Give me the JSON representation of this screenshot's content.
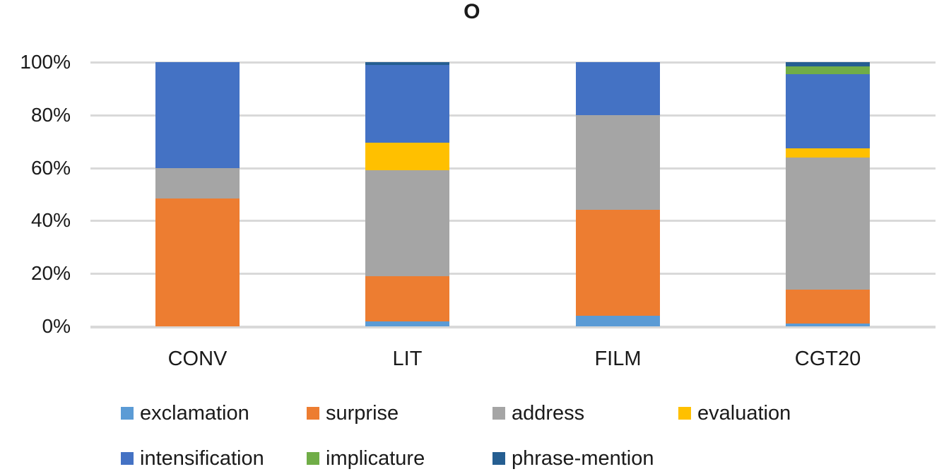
{
  "chart_data": {
    "type": "bar",
    "stacked": true,
    "percent_stacked": true,
    "title": "O",
    "categories": [
      "CONV",
      "LIT",
      "FILM",
      "CGT20"
    ],
    "series": [
      {
        "name": "exclamation",
        "color": "#5B9BD5",
        "values": [
          0,
          2,
          4,
          1
        ]
      },
      {
        "name": "surprise",
        "color": "#ED7D31",
        "values": [
          48.5,
          17,
          40,
          13
        ]
      },
      {
        "name": "address",
        "color": "#A5A5A5",
        "values": [
          11.5,
          40,
          36,
          50
        ]
      },
      {
        "name": "evaluation",
        "color": "#FFC000",
        "values": [
          0,
          10.5,
          0,
          3.5
        ]
      },
      {
        "name": "intensification",
        "color": "#4472C4",
        "values": [
          40,
          29.5,
          20,
          28
        ]
      },
      {
        "name": "implicature",
        "color": "#70AD47",
        "values": [
          0,
          0,
          0,
          3
        ]
      },
      {
        "name": "phrase-mention",
        "color": "#255E91",
        "values": [
          0,
          1,
          0,
          1.5
        ]
      }
    ],
    "y_axis": {
      "min": 0,
      "max": 100,
      "step": 20,
      "tick_labels": [
        "0%",
        "20%",
        "40%",
        "60%",
        "80%",
        "100%"
      ]
    },
    "x_axis": {
      "tick_labels": [
        "CONV",
        "LIT",
        "FILM",
        "CGT20"
      ]
    },
    "grid": true,
    "legend_position": "bottom",
    "legend_items_per_row": 4,
    "colors": {
      "gridline": "#D9D9D9",
      "text": "#1A1A1A",
      "background": "#FFFFFF"
    }
  }
}
